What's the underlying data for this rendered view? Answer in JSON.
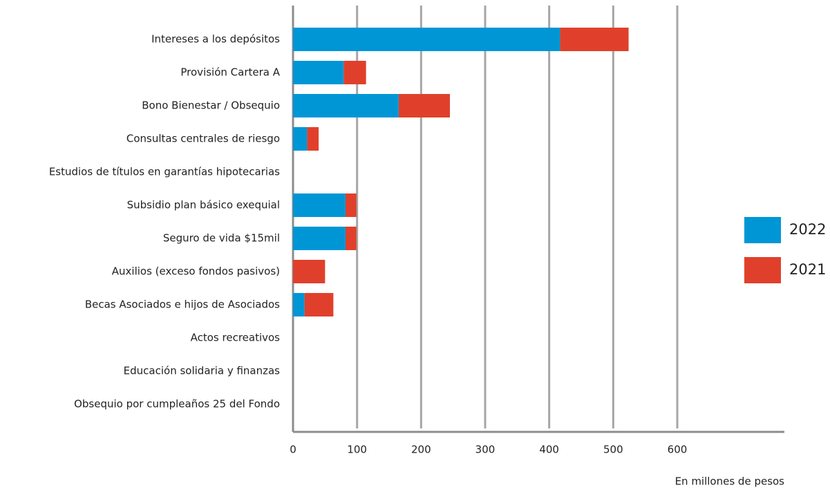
{
  "chart_data": {
    "type": "bar",
    "orientation": "horizontal",
    "stacked": true,
    "x_label": "En millones de pesos",
    "categories": [
      "Intereses a los depósitos",
      "Provisión Cartera A",
      "Bono Bienestar / Obsequio",
      "Consultas centrales de riesgo",
      "Estudios de títulos en garantías hipotecarias",
      "Subsidio plan básico exequial",
      "Seguro de vida $15mil",
      "Auxilios (exceso fondos pasivos)",
      "Becas Asociados e hijos de Asociados",
      "Actos recreativos",
      "Educación solidaria y finanzas",
      "Obsequio por cumpleaños 25 del Fondo"
    ],
    "series": [
      {
        "name": "2022",
        "color": "#0096d6",
        "values": [
          417,
          79,
          165,
          22,
          null,
          82,
          82,
          null,
          18,
          null,
          null,
          null
        ]
      },
      {
        "name": "2021",
        "color": "#e0402b",
        "values": [
          107,
          35,
          80,
          18,
          null,
          17,
          17,
          50,
          45,
          null,
          null,
          null
        ]
      }
    ],
    "xlim": [
      0,
      600
    ],
    "xticks": [
      0,
      100,
      200,
      300,
      400,
      500,
      600
    ],
    "grid": true,
    "legend": "right"
  }
}
